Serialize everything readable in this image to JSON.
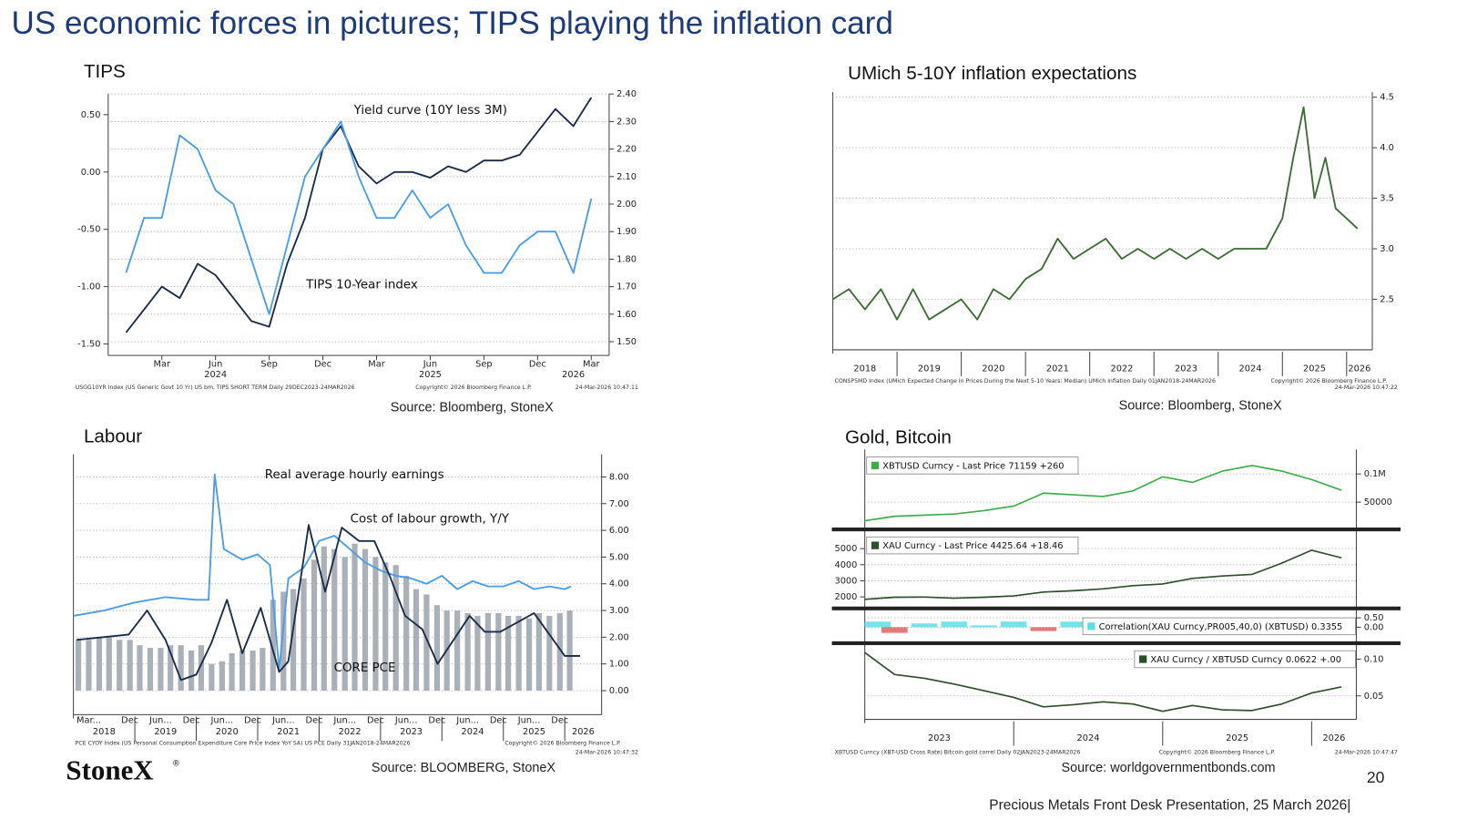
{
  "slide": {
    "title": "US  economic forces in pictures; TIPS playing the inflation card",
    "logo": "StoneX",
    "logo_mark": "®",
    "page": "20",
    "footer": "Precious Metals Front Desk Presentation, 25 March 2026|"
  },
  "chart_data": [
    {
      "type": "line",
      "title": "TIPS",
      "source": "Source: Bloomberg, StoneX",
      "notes": [
        "USGG10YR Index (US Generic Govt 10 Yr) US bm, TIPS SHORT TERM Daily 29DEC2023-24MAR2026",
        "Copyright© 2026 Bloomberg Finance L.P.",
        "24-Mar-2026 10:47:11"
      ],
      "x": [
        "2024-01",
        "2024-02",
        "2024-03",
        "2024-04",
        "2024-05",
        "2024-06",
        "2024-07",
        "2024-08",
        "2024-09",
        "2024-10",
        "2024-11",
        "2024-12",
        "2025-01",
        "2025-02",
        "2025-03",
        "2025-04",
        "2025-05",
        "2025-06",
        "2025-07",
        "2025-08",
        "2025-09",
        "2025-10",
        "2025-11",
        "2025-12",
        "2026-01",
        "2026-02",
        "2026-03"
      ],
      "xlim": [
        "2023-12",
        "2026-04"
      ],
      "xticks": [
        {
          "value": "2024-03",
          "label": "Mar"
        },
        {
          "value": "2024-06",
          "label": "Jun"
        },
        {
          "value": "2024-09",
          "label": "Sep"
        },
        {
          "value": "2024-12",
          "label": "Dec"
        },
        {
          "value": "2025-03",
          "label": "Mar"
        },
        {
          "value": "2025-06",
          "label": "Jun"
        },
        {
          "value": "2025-09",
          "label": "Sep"
        },
        {
          "value": "2025-12",
          "label": "Dec"
        },
        {
          "value": "2026-03",
          "label": "Mar"
        }
      ],
      "xyears": [
        {
          "value": "2024-06",
          "label": "2024"
        },
        {
          "value": "2025-06",
          "label": "2025"
        },
        {
          "value": "2026-02",
          "label": "2026"
        }
      ],
      "ylim": [
        -1.6,
        0.68
      ],
      "yticks": [
        {
          "value": -1.5,
          "label": "-1.50"
        },
        {
          "value": -1,
          "label": "-1.00"
        },
        {
          "value": -0.5,
          "label": "-0.50"
        },
        {
          "value": 0,
          "label": "0.00"
        },
        {
          "value": 0.5,
          "label": "0.50"
        }
      ],
      "y2lim": [
        1.45,
        2.4
      ],
      "y2ticks": [
        {
          "value": 1.5,
          "label": "1.50"
        },
        {
          "value": 1.6,
          "label": "1.60"
        },
        {
          "value": 1.7,
          "label": "1.70"
        },
        {
          "value": 1.8,
          "label": "1.80"
        },
        {
          "value": 1.9,
          "label": "1.90"
        },
        {
          "value": 2,
          "label": "2.00"
        },
        {
          "value": 2.1,
          "label": "2.10"
        },
        {
          "value": 2.2,
          "label": "2.20"
        },
        {
          "value": 2.3,
          "label": "2.30"
        },
        {
          "value": 2.4,
          "label": "2.40"
        }
      ],
      "grid": true,
      "grid_axis": "y2",
      "series": [
        {
          "name": "Yield curve (10Y less 3M)",
          "color": "#1a2b4a",
          "axis": "y",
          "values": [
            -1.4,
            -1.2,
            -1.0,
            -1.1,
            -0.8,
            -0.9,
            -1.1,
            -1.3,
            -1.35,
            -0.8,
            -0.4,
            0.2,
            0.4,
            0.05,
            -0.1,
            0.0,
            0.0,
            -0.05,
            0.05,
            0.0,
            0.1,
            0.1,
            0.15,
            0.35,
            0.55,
            0.4,
            0.65
          ]
        },
        {
          "name": "TIPS 10-Year index",
          "color": "#4a9de8",
          "axis": "y2",
          "values": [
            1.75,
            1.95,
            1.95,
            2.25,
            2.2,
            2.05,
            2.0,
            1.8,
            1.6,
            1.85,
            2.1,
            2.2,
            2.3,
            2.1,
            1.95,
            1.95,
            2.05,
            1.95,
            2.0,
            1.85,
            1.75,
            1.75,
            1.85,
            1.9,
            1.9,
            1.75,
            2.02
          ]
        }
      ]
    },
    {
      "type": "line",
      "title": "UMich 5-10Y inflation expectations",
      "source": "Source: Bloomberg, StoneX",
      "notes": [
        "CONSP5MD Index (UMich Expected Change in Prices During the Next 5-10 Years: Median) UMich inflation Daily 01JAN2018-24MAR2026",
        "Copyright© 2026 Bloomberg Finance L.P.",
        "24-Mar-2026 10:47:22"
      ],
      "x": [
        2018,
        2018.25,
        2018.5,
        2018.75,
        2019,
        2019.25,
        2019.5,
        2019.75,
        2020,
        2020.25,
        2020.5,
        2020.75,
        2021,
        2021.25,
        2021.5,
        2021.75,
        2022,
        2022.25,
        2022.5,
        2022.75,
        2023,
        2023.25,
        2023.5,
        2023.75,
        2024,
        2024.25,
        2024.5,
        2024.75,
        2025,
        2025.17,
        2025.33,
        2025.5,
        2025.67,
        2025.83,
        2026,
        2026.17
      ],
      "xlim": [
        2018,
        2026.4
      ],
      "xticks": [
        2018,
        2019,
        2020,
        2021,
        2022,
        2023,
        2024,
        2025,
        2026
      ],
      "ylim": [
        2.0,
        4.55
      ],
      "yticks": [
        2.5,
        {
          "value": 3,
          "label": "3.0"
        },
        3.5,
        {
          "value": 4,
          "label": "4.0"
        },
        4.5
      ],
      "y_side": "right",
      "grid": true,
      "grid_axis": "y",
      "series": [
        {
          "name": null,
          "color": "#3d6b35",
          "axis": "y",
          "values": [
            2.5,
            2.6,
            2.4,
            2.6,
            2.3,
            2.6,
            2.3,
            2.4,
            2.5,
            2.3,
            2.6,
            2.5,
            2.7,
            2.8,
            3.1,
            2.9,
            3.0,
            3.1,
            2.9,
            3.0,
            2.9,
            3.0,
            2.9,
            3.0,
            2.9,
            3.0,
            3.0,
            3.0,
            3.3,
            3.9,
            4.4,
            3.5,
            3.9,
            3.4,
            3.3,
            3.2
          ]
        }
      ]
    },
    {
      "type": "combo",
      "title": "Labour",
      "source": "Source: BLOOMBERG, StoneX",
      "notes": [
        "PCE CYOY Index (US Personal Consumption Expenditure Core Price Index YoY SA) US PCE Daily 31JAN2018-24MAR2026",
        "Copyright© 2026 Bloomberg Finance L.P.",
        "24-Mar-2026 10:47:32"
      ],
      "xlim": [
        2018,
        2026.6
      ],
      "xticks": [
        2018,
        2019,
        2020,
        2021,
        2022,
        2023,
        2024,
        2025,
        2026
      ],
      "xlabels": [
        {
          "value": 2018.25,
          "label": "Mar..."
        },
        {
          "value": 2018.92,
          "label": "Dec"
        },
        {
          "value": 2019.42,
          "label": "Jun..."
        },
        {
          "value": 2019.92,
          "label": "Dec"
        },
        {
          "value": 2020.42,
          "label": "Jun..."
        },
        {
          "value": 2020.92,
          "label": "Dec"
        },
        {
          "value": 2021.42,
          "label": "Jun..."
        },
        {
          "value": 2021.92,
          "label": "Dec"
        },
        {
          "value": 2022.42,
          "label": "Jun..."
        },
        {
          "value": 2022.92,
          "label": "Dec"
        },
        {
          "value": 2023.42,
          "label": "Jun..."
        },
        {
          "value": 2023.92,
          "label": "Dec"
        },
        {
          "value": 2024.42,
          "label": "Jun..."
        },
        {
          "value": 2024.92,
          "label": "Dec"
        },
        {
          "value": 2025.42,
          "label": "Jun..."
        },
        {
          "value": 2025.92,
          "label": "Dec"
        }
      ],
      "ylim": [
        -0.9,
        8.85
      ],
      "yticks": [
        {
          "value": 0,
          "label": "0.00"
        },
        {
          "value": 1,
          "label": "1.00"
        },
        {
          "value": 2,
          "label": "2.00"
        },
        {
          "value": 3,
          "label": "3.00"
        },
        {
          "value": 4,
          "label": "4.00"
        },
        {
          "value": 5,
          "label": "5.00"
        },
        {
          "value": 6,
          "label": "6.00"
        },
        {
          "value": 7,
          "label": "7.00"
        },
        {
          "value": 8,
          "label": "8.00"
        }
      ],
      "y_side": "right",
      "grid": true,
      "grid_axis": "y",
      "series": [
        {
          "name": "CORE PCE",
          "type": "bar",
          "color": "#aab0b7",
          "x": [
            2018.08,
            2018.25,
            2018.42,
            2018.58,
            2018.75,
            2018.92,
            2019.08,
            2019.25,
            2019.42,
            2019.58,
            2019.75,
            2019.92,
            2020.08,
            2020.25,
            2020.42,
            2020.58,
            2020.75,
            2020.92,
            2021.08,
            2021.25,
            2021.42,
            2021.58,
            2021.75,
            2021.92,
            2022.08,
            2022.25,
            2022.42,
            2022.58,
            2022.75,
            2022.92,
            2023.08,
            2023.25,
            2023.42,
            2023.58,
            2023.75,
            2023.92,
            2024.08,
            2024.25,
            2024.42,
            2024.58,
            2024.75,
            2024.92,
            2025.08,
            2025.25,
            2025.42,
            2025.58,
            2025.75,
            2025.92,
            2026.08
          ],
          "values": [
            1.9,
            1.9,
            2.0,
            2.0,
            1.9,
            1.9,
            1.7,
            1.6,
            1.6,
            1.7,
            1.7,
            1.5,
            1.7,
            1.0,
            1.1,
            1.4,
            1.5,
            1.5,
            1.6,
            3.4,
            3.7,
            3.8,
            4.2,
            4.9,
            5.4,
            5.3,
            5.0,
            5.5,
            5.3,
            5.0,
            4.8,
            4.7,
            4.3,
            3.8,
            3.6,
            3.2,
            3.0,
            3.0,
            2.9,
            2.8,
            2.9,
            2.9,
            2.8,
            2.8,
            2.7,
            2.9,
            2.8,
            2.9,
            3.0
          ]
        },
        {
          "name": "Real average hourly earnings",
          "type": "line",
          "color": "#4a9de8",
          "x": [
            2018.0,
            2018.5,
            2019.0,
            2019.5,
            2020.0,
            2020.2,
            2020.3,
            2020.45,
            2020.75,
            2021.0,
            2021.2,
            2021.35,
            2021.5,
            2021.75,
            2022.0,
            2022.25,
            2022.5,
            2022.75,
            2023.0,
            2023.25,
            2023.5,
            2023.75,
            2024.0,
            2024.25,
            2024.5,
            2024.75,
            2025.0,
            2025.25,
            2025.5,
            2025.75,
            2026.0,
            2026.1
          ],
          "values": [
            2.8,
            3.0,
            3.3,
            3.5,
            3.4,
            3.4,
            8.1,
            5.3,
            4.9,
            5.1,
            4.7,
            0.8,
            4.2,
            4.6,
            5.6,
            5.8,
            5.3,
            4.8,
            4.5,
            4.3,
            4.2,
            4.0,
            4.3,
            3.8,
            4.1,
            3.9,
            3.9,
            4.1,
            3.8,
            3.9,
            3.8,
            3.9
          ]
        },
        {
          "name": "Cost of labour growth, Y/Y",
          "type": "line",
          "color": "#1a2b4a",
          "x": [
            2018.05,
            2018.9,
            2019.2,
            2019.5,
            2019.75,
            2020.0,
            2020.25,
            2020.5,
            2020.75,
            2021.05,
            2021.35,
            2021.5,
            2021.83,
            2022.1,
            2022.37,
            2022.65,
            2022.9,
            2023.15,
            2023.4,
            2023.68,
            2023.93,
            2024.45,
            2024.7,
            2024.95,
            2025.5,
            2025.75,
            2026.0,
            2026.25
          ],
          "values": [
            1.9,
            2.1,
            3.0,
            1.9,
            0.4,
            0.6,
            1.8,
            3.4,
            1.4,
            3.1,
            0.7,
            1.1,
            6.2,
            3.7,
            6.1,
            5.6,
            5.6,
            4.3,
            2.8,
            2.3,
            1.0,
            2.8,
            2.2,
            2.2,
            2.9,
            2.1,
            1.3,
            1.3
          ]
        }
      ]
    },
    {
      "type": "panels",
      "title": "Gold, Bitcoin",
      "source": "Source: worldgovernmentbonds.com",
      "notes": [
        "XBTUSD Curncy (XBT-USD Cross Rate) Bitcoin gold correl Daily 02JAN2023-24MAR2026",
        "Copyright© 2026 Bloomberg Finance L.P.",
        "24-Mar-2026 10:47:47"
      ],
      "x": [
        2023.0,
        2023.2,
        2023.4,
        2023.6,
        2023.8,
        2024.0,
        2024.2,
        2024.4,
        2024.6,
        2024.8,
        2025.0,
        2025.2,
        2025.4,
        2025.6,
        2025.8,
        2026.0,
        2026.2
      ],
      "xlim": [
        2023,
        2026.3
      ],
      "xticks": [
        2023,
        2024,
        2025,
        2026
      ],
      "grid": true,
      "panels": [
        {
          "name": "XBTUSD Curncy - Last Price 71159 +260",
          "type": "line",
          "color": "#3cae47",
          "y_side": "right",
          "ylim": [
            15000,
            135000
          ],
          "yticks": [
            50000,
            {
              "value": 100000,
              "label": "0.1M"
            }
          ],
          "values": [
            17000,
            25000,
            27000,
            29000,
            35000,
            43000,
            66000,
            63000,
            60000,
            70000,
            95000,
            85000,
            105000,
            115000,
            105000,
            90000,
            71159
          ]
        },
        {
          "name": "XAU Curncy - Last Price 4425.64 +18.46",
          "type": "line",
          "color": "#2d4f2d",
          "y_side": "left",
          "ylim": [
            1400,
            5900
          ],
          "yticks": [
            2000,
            3000,
            4000,
            5000
          ],
          "values": [
            1850,
            1980,
            1990,
            1920,
            1980,
            2060,
            2300,
            2380,
            2500,
            2700,
            2800,
            3150,
            3300,
            3400,
            4100,
            4900,
            4426
          ]
        },
        {
          "name": "Correlation(XAU Curncy,PR005,40,0) (XBTUSD) 0.3355",
          "type": "bar",
          "color": "#5fdde6",
          "negative_color": "#e06060",
          "y_side": "right",
          "ylim": [
            -0.65,
            0.8
          ],
          "yticks": [
            {
              "value": 0,
              "label": "0.00"
            },
            {
              "value": 0.5,
              "label": "0.50"
            }
          ],
          "values": [
            0.3,
            -0.3,
            0.2,
            0.3,
            0.1,
            0.3,
            -0.2,
            0.3,
            0.2,
            -0.1,
            0.3,
            0.2,
            0.3,
            0.3,
            0.3,
            0.2,
            0.34
          ]
        },
        {
          "name": "XAU Curncy / XBTUSD Curncy 0.0622 +.00",
          "type": "line",
          "color": "#2d4f2d",
          "y_side": "right",
          "ylim": [
            0.018,
            0.114
          ],
          "yticks": [
            {
              "value": 0.05,
              "label": "0.05"
            },
            {
              "value": 0.1,
              "label": "0.10"
            }
          ],
          "values": [
            0.109,
            0.079,
            0.074,
            0.066,
            0.057,
            0.048,
            0.035,
            0.038,
            0.042,
            0.039,
            0.029,
            0.037,
            0.031,
            0.03,
            0.039,
            0.054,
            0.0622
          ]
        }
      ]
    }
  ]
}
